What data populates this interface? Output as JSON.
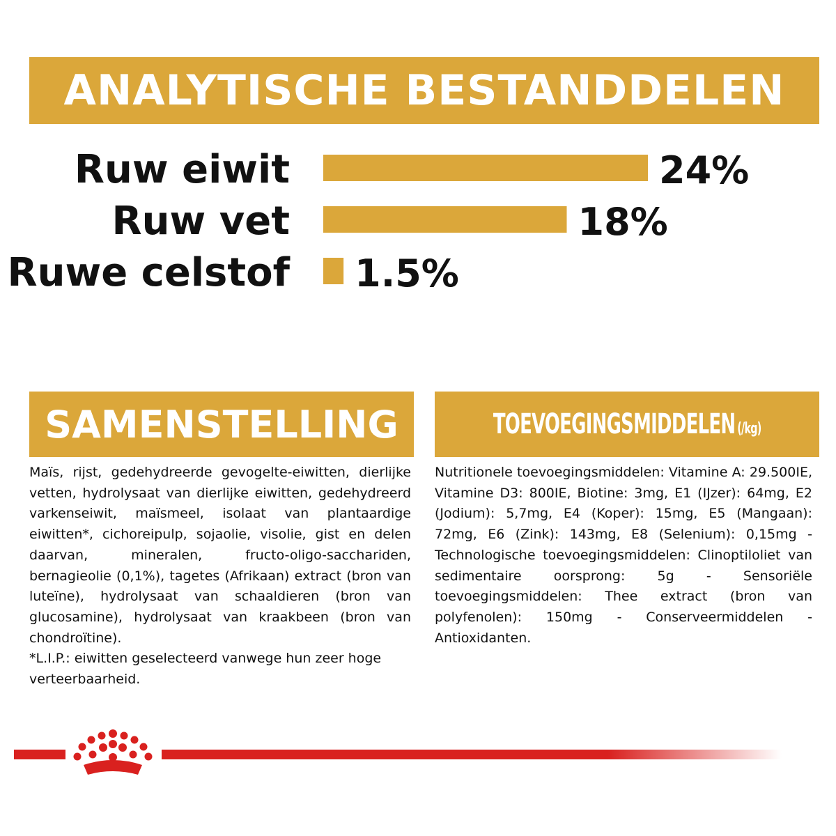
{
  "header": {
    "title": "ANALYTISCHE BESTANDDELEN"
  },
  "chart_data": {
    "type": "bar",
    "orientation": "horizontal",
    "title": "ANALYTISCHE BESTANDDELEN",
    "categories": [
      "Ruw eiwit",
      "Ruw vet",
      "Ruwe celstof"
    ],
    "values": [
      24,
      18,
      1.5
    ],
    "value_labels": [
      "24%",
      "18%",
      "1.5%"
    ],
    "xlim": [
      0,
      24
    ],
    "bar_color": "#dba73a",
    "grid": false
  },
  "samenstelling": {
    "heading": "SAMENSTELLING",
    "text": "Maïs, rijst, gedehydreerde gevogelte-eiwitten, dierlijke vetten, hydrolysaat van dierlijke eiwitten, gedehydreerd varkenseiwit, maïsmeel, isolaat van plantaardige eiwitten*, cichoreipulp, sojaolie, visolie, gist en delen daarvan, mineralen, fructo-oligo-sacchariden, bernagieolie (0,1%), tagetes (Afrikaan) extract (bron van luteïne), hydrolysaat van schaaldieren (bron van glucosamine), hydrolysaat van kraakbeen (bron van chondroïtine).",
    "note": "*L.I.P.: eiwitten geselecteerd vanwege hun zeer hoge verteerbaarheid."
  },
  "toevoegingsmiddelen": {
    "heading": "TOEVOEGINGSMIDDELEN",
    "unit": "(/kg)",
    "text": "Nutritionele toevoegingsmiddelen: Vitamine A: 29.500IE, Vitamine D3: 800IE, Biotine: 3mg, E1 (IJzer): 64mg, E2 (Jodium): 5,7mg, E4 (Koper): 15mg, E5 (Mangaan): 72mg, E6 (Zink): 143mg, E8 (Selenium): 0,15mg - Technologische toevoegingsmiddelen: Clinoptiloliet van sedimentaire oorsprong: 5g - Sensoriële toevoegingsmiddelen: Thee extract (bron van polyfenolen): 150mg - Conserveermiddelen - Antioxidanten."
  },
  "colors": {
    "accent": "#dba73a",
    "brand_red": "#d9211f"
  },
  "footer": {
    "logo_icon": "crown-icon"
  }
}
